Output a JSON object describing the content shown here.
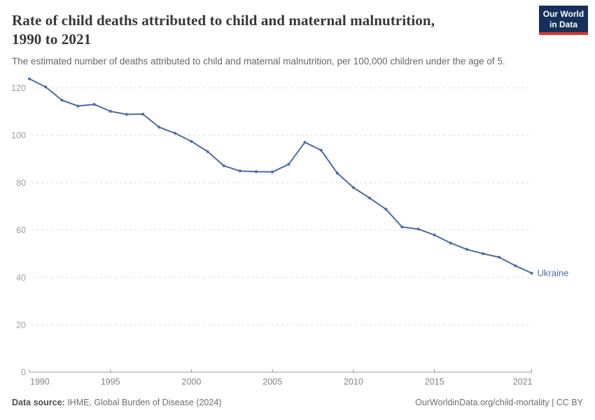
{
  "header": {
    "title_lines": [
      "Rate of child deaths attributed to child and maternal malnutrition,",
      "1990 to 2021"
    ],
    "subtitle": "The estimated number of deaths attributed to child and maternal malnutrition, per 100,000 children under the age of 5.",
    "logo": {
      "line1": "Our World",
      "line2": "in Data",
      "bg_color": "#15305b",
      "accent_color": "#d73a33"
    }
  },
  "chart_data": {
    "type": "line",
    "title": "Rate of child deaths attributed to child and maternal malnutrition, 1990 to 2021",
    "xlabel": "",
    "ylabel": "",
    "x": [
      1990,
      1991,
      1992,
      1993,
      1994,
      1995,
      1996,
      1997,
      1998,
      1999,
      2000,
      2001,
      2002,
      2003,
      2004,
      2005,
      2006,
      2007,
      2008,
      2009,
      2010,
      2011,
      2012,
      2013,
      2014,
      2015,
      2016,
      2017,
      2018,
      2019,
      2020,
      2021
    ],
    "series": [
      {
        "name": "Ukraine",
        "color": "#4d6ba3",
        "values": [
          123.8,
          120.4,
          114.8,
          112.3,
          113.0,
          110.1,
          108.8,
          108.9,
          103.4,
          100.8,
          97.4,
          93.1,
          87.1,
          84.9,
          84.6,
          84.5,
          87.7,
          97.0,
          93.7,
          84.0,
          77.9,
          73.5,
          68.8,
          61.3,
          60.4,
          57.9,
          54.5,
          51.8,
          50.0,
          48.5,
          44.9,
          41.8
        ]
      }
    ],
    "entity_label": "Ukraine",
    "x_ticks": [
      1990,
      1995,
      2000,
      2005,
      2010,
      2015,
      2021
    ],
    "y_ticks": [
      0,
      20,
      40,
      60,
      80,
      100,
      120
    ],
    "xlim": [
      1990,
      2021
    ],
    "ylim": [
      0,
      125
    ],
    "grid": "horizontal-dashed",
    "legend_position": "end-of-line"
  },
  "footer": {
    "source_label": "Data source:",
    "source_value": " IHME, Global Burden of Disease (2024)",
    "attribution": "OurWorldinData.org/child-mortality | CC BY"
  },
  "colors": {
    "y_label": "#a0a0a0",
    "x_label": "#828282",
    "gridline": "#d9d9d9",
    "axis": "#999999"
  }
}
